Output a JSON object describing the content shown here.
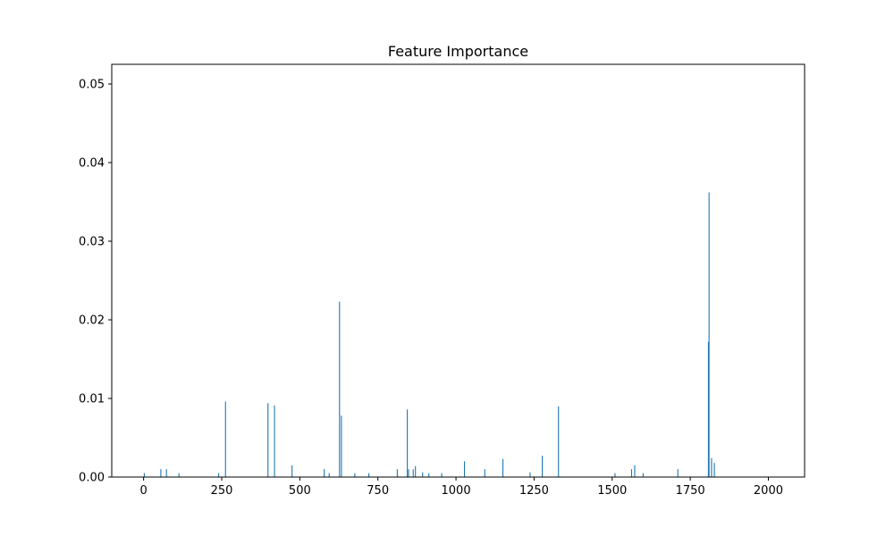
{
  "chart_data": {
    "type": "bar",
    "title": "Feature Importance",
    "xlabel": "",
    "ylabel": "",
    "xlim": [
      -102,
      2116
    ],
    "ylim": [
      0,
      0.0525
    ],
    "xticks": [
      0,
      250,
      500,
      750,
      1000,
      1250,
      1500,
      1750,
      2000
    ],
    "xtick_labels": [
      "0",
      "250",
      "500",
      "750",
      "1000",
      "1250",
      "1500",
      "1750",
      "2000"
    ],
    "yticks": [
      0,
      0.01,
      0.02,
      0.03,
      0.04,
      0.05
    ],
    "ytick_labels": [
      "0.00",
      "0.01",
      "0.02",
      "0.03",
      "0.04",
      "0.05"
    ],
    "bar_color": "#1f77b4",
    "grid": false,
    "bars": [
      {
        "x": 2,
        "value": 0.0005
      },
      {
        "x": 55,
        "value": 0.001
      },
      {
        "x": 73,
        "value": 0.001
      },
      {
        "x": 113,
        "value": 0.0005
      },
      {
        "x": 240,
        "value": 0.0005
      },
      {
        "x": 262,
        "value": 0.0096
      },
      {
        "x": 398,
        "value": 0.0094
      },
      {
        "x": 419,
        "value": 0.0091
      },
      {
        "x": 475,
        "value": 0.0015
      },
      {
        "x": 578,
        "value": 0.001
      },
      {
        "x": 594,
        "value": 0.0005
      },
      {
        "x": 627,
        "value": 0.0223
      },
      {
        "x": 633,
        "value": 0.0078
      },
      {
        "x": 676,
        "value": 0.0005
      },
      {
        "x": 721,
        "value": 0.0005
      },
      {
        "x": 812,
        "value": 0.001
      },
      {
        "x": 844,
        "value": 0.0086
      },
      {
        "x": 848,
        "value": 0.001
      },
      {
        "x": 863,
        "value": 0.001
      },
      {
        "x": 870,
        "value": 0.0014
      },
      {
        "x": 893,
        "value": 0.0006
      },
      {
        "x": 913,
        "value": 0.0005
      },
      {
        "x": 954,
        "value": 0.0005
      },
      {
        "x": 1027,
        "value": 0.002
      },
      {
        "x": 1092,
        "value": 0.001
      },
      {
        "x": 1150,
        "value": 0.0023
      },
      {
        "x": 1237,
        "value": 0.0006
      },
      {
        "x": 1276,
        "value": 0.0027
      },
      {
        "x": 1328,
        "value": 0.009
      },
      {
        "x": 1509,
        "value": 0.0005
      },
      {
        "x": 1562,
        "value": 0.001
      },
      {
        "x": 1572,
        "value": 0.0015
      },
      {
        "x": 1599,
        "value": 0.0005
      },
      {
        "x": 1710,
        "value": 0.001
      },
      {
        "x": 1808,
        "value": 0.0172
      },
      {
        "x": 1810,
        "value": 0.0362
      },
      {
        "x": 1818,
        "value": 0.0024
      },
      {
        "x": 1827,
        "value": 0.0018
      }
    ]
  }
}
